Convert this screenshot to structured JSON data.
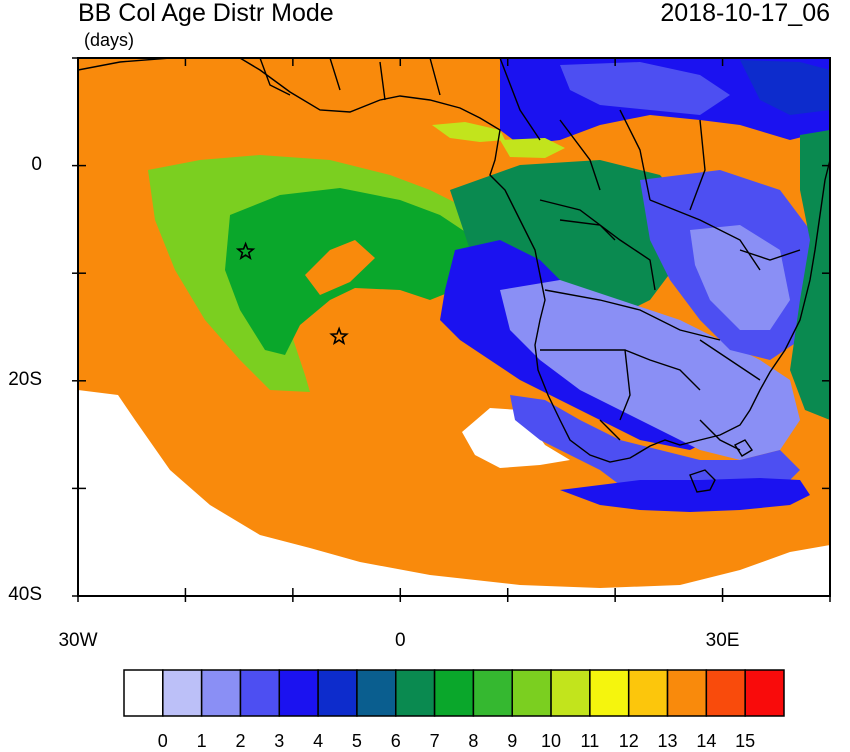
{
  "header": {
    "title": "BB Col Age Distr Mode",
    "datetime": "2018-10-17_06",
    "units": "(days)"
  },
  "map": {
    "lat_ticks": [
      {
        "value": 0,
        "label": "0"
      },
      {
        "value": -20,
        "label": "20S"
      },
      {
        "value": -40,
        "label": "40S"
      }
    ],
    "lon_ticks": [
      {
        "value": -30,
        "label": "30W"
      },
      {
        "value": 0,
        "label": "0"
      },
      {
        "value": 30,
        "label": "30E"
      }
    ],
    "lat_range": [
      -40,
      10
    ],
    "lon_range": [
      -30,
      40
    ],
    "markers": [
      {
        "name": "star",
        "lon": -14.4,
        "lat": -8.0
      },
      {
        "name": "star",
        "lon": -5.7,
        "lat": -15.9
      }
    ]
  },
  "colorbar": {
    "labels": [
      "0",
      "1",
      "2",
      "3",
      "4",
      "5",
      "6",
      "7",
      "8",
      "9",
      "10",
      "11",
      "12",
      "13",
      "14",
      "15"
    ],
    "colors": [
      "#ffffff",
      "#bcc0f8",
      "#8a8ff5",
      "#4d4ff2",
      "#1b12f0",
      "#0d2ccc",
      "#0a5e8f",
      "#0a8a50",
      "#0aa72b",
      "#35b830",
      "#7bcf20",
      "#c2e41c",
      "#f5f50d",
      "#fcc60c",
      "#f98a0c",
      "#f94b0c",
      "#f90b0b"
    ]
  }
}
